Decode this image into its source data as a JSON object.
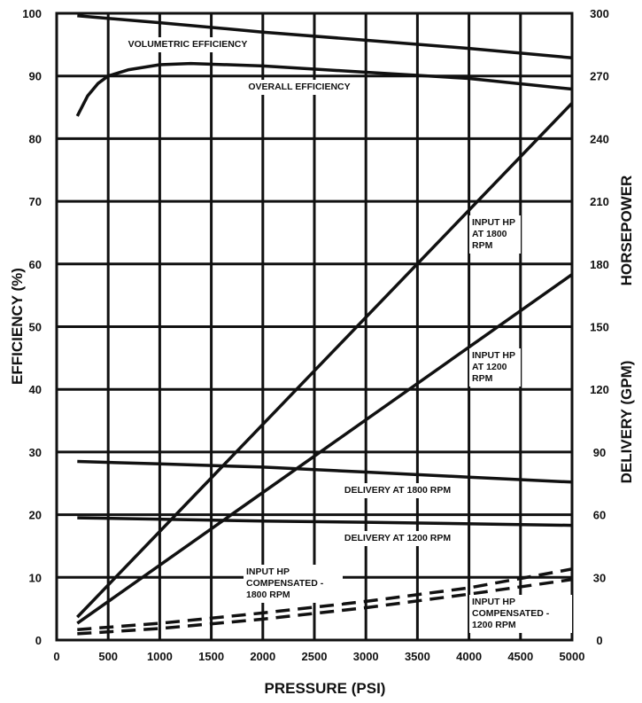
{
  "chart_data": {
    "type": "line",
    "xlabel": "PRESSURE (PSI)",
    "ylabel_left": "EFFICIENCY (%)",
    "ylabel_right_top": "HORSEPOWER",
    "ylabel_right_bottom": "DELIVERY (GPM)",
    "xlim": [
      0,
      5000
    ],
    "ylim_left": [
      0,
      100
    ],
    "ylim_right": [
      0,
      300
    ],
    "x_ticks": [
      "0",
      "500",
      "1000",
      "1500",
      "2000",
      "2500",
      "3000",
      "3500",
      "4000",
      "4500",
      "5000"
    ],
    "y_ticks_left": [
      "0",
      "10",
      "20",
      "30",
      "40",
      "50",
      "60",
      "70",
      "80",
      "90",
      "100"
    ],
    "y_ticks_right": [
      "0",
      "30",
      "60",
      "90",
      "120",
      "150",
      "180",
      "210",
      "240",
      "270",
      "300"
    ],
    "grid": true,
    "series": [
      {
        "name": "VOLUMETRIC EFFICIENCY",
        "axis": "left",
        "style": "solid",
        "points": [
          [
            200,
            99.6
          ],
          [
            1000,
            98.5
          ],
          [
            2000,
            97.0
          ],
          [
            3000,
            95.7
          ],
          [
            4000,
            94.4
          ],
          [
            5000,
            92.9
          ]
        ]
      },
      {
        "name": "OVERALL EFFICIENCY",
        "axis": "left",
        "style": "solid",
        "points": [
          [
            200,
            83.6
          ],
          [
            300,
            86.8
          ],
          [
            400,
            88.8
          ],
          [
            500,
            90.0
          ],
          [
            700,
            91.0
          ],
          [
            1000,
            91.8
          ],
          [
            1300,
            92.0
          ],
          [
            2000,
            91.6
          ],
          [
            3000,
            90.6
          ],
          [
            4000,
            89.6
          ],
          [
            5000,
            87.9
          ]
        ]
      },
      {
        "name": "INPUT HP AT 1800 RPM",
        "axis": "right",
        "style": "solid",
        "points": [
          [
            200,
            11
          ],
          [
            5000,
            257
          ]
        ]
      },
      {
        "name": "INPUT HP AT 1200 RPM",
        "axis": "right",
        "style": "solid",
        "points": [
          [
            200,
            8
          ],
          [
            5000,
            175
          ]
        ]
      },
      {
        "name": "DELIVERY AT 1800 RPM",
        "axis": "right",
        "style": "solid",
        "points": [
          [
            200,
            85.5
          ],
          [
            1000,
            84.3
          ],
          [
            2000,
            82.8
          ],
          [
            3000,
            80.4
          ],
          [
            4000,
            78.0
          ],
          [
            5000,
            75.6
          ]
        ]
      },
      {
        "name": "DELIVERY AT 1200 RPM",
        "axis": "right",
        "style": "solid",
        "points": [
          [
            200,
            58.5
          ],
          [
            2000,
            57.0
          ],
          [
            3000,
            56.4
          ],
          [
            5000,
            54.9
          ]
        ]
      },
      {
        "name": "INPUT HP COMPENSATED - 1800 RPM",
        "axis": "right",
        "style": "dashed",
        "points": [
          [
            200,
            5
          ],
          [
            1000,
            8
          ],
          [
            2000,
            13
          ],
          [
            3000,
            18.5
          ],
          [
            4000,
            25
          ],
          [
            5000,
            34
          ]
        ]
      },
      {
        "name": "INPUT HP COMPENSATED - 1200 RPM",
        "axis": "right",
        "style": "dashed",
        "points": [
          [
            200,
            3
          ],
          [
            1000,
            5.5
          ],
          [
            2000,
            10
          ],
          [
            3000,
            15.5
          ],
          [
            4000,
            22
          ],
          [
            5000,
            29
          ]
        ]
      }
    ],
    "annotations": [
      {
        "key": "vol_eff",
        "lines": [
          "VOLUMETRIC EFFICIENCY"
        ]
      },
      {
        "key": "overall_eff",
        "lines": [
          "OVERALL EFFICIENCY"
        ]
      },
      {
        "key": "hp1800",
        "lines": [
          "INPUT HP",
          "AT 1800",
          "RPM"
        ]
      },
      {
        "key": "hp1200",
        "lines": [
          "INPUT HP",
          "AT 1200",
          "RPM"
        ]
      },
      {
        "key": "del1800",
        "lines": [
          "DELIVERY AT 1800 RPM"
        ]
      },
      {
        "key": "del1200",
        "lines": [
          "DELIVERY AT 1200 RPM"
        ]
      },
      {
        "key": "comp1800",
        "lines": [
          "INPUT HP",
          "COMPENSATED -",
          "1800 RPM"
        ]
      },
      {
        "key": "comp1200",
        "lines": [
          "INPUT HP",
          "COMPENSATED -",
          "1200 RPM"
        ]
      }
    ]
  }
}
